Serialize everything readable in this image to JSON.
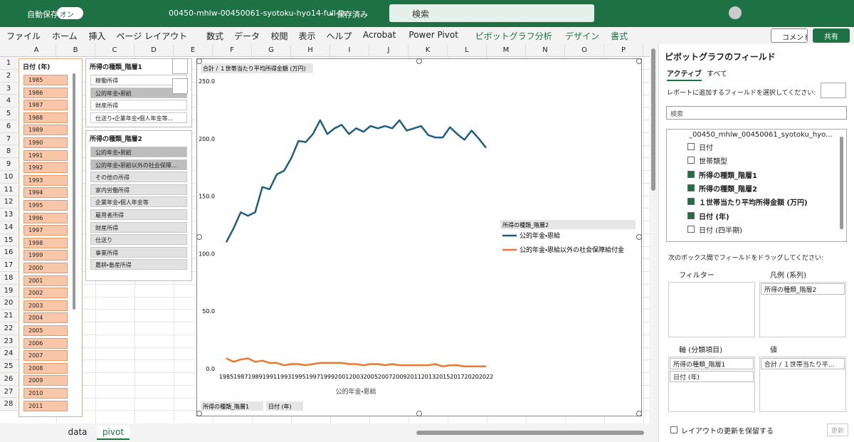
{
  "titlebar": {
    "autosave": "自動保存",
    "toggle": "オン",
    "filename": "00450-mhlw-00450061-syotoku-hyo14-full-lis···",
    "saved": "• 保存済み",
    "search": "検索"
  },
  "ribbon": {
    "tabs": [
      "ファイル",
      "ホーム",
      "挿入",
      "ページ レイアウト",
      "数式",
      "データ",
      "校閲",
      "表示",
      "ヘルプ",
      "Acrobat",
      "Power Pivot",
      "ピボットグラフ分析",
      "デザイン",
      "書式"
    ],
    "comment": "コメント",
    "share": "共有"
  },
  "sheet": {
    "columns": [
      "A",
      "B",
      "C",
      "D",
      "E",
      "F",
      "G",
      "H",
      "I",
      "J",
      "K",
      "L",
      "M",
      "N",
      "O",
      "P"
    ],
    "rows": [
      "1",
      "2",
      "3",
      "4",
      "5",
      "6",
      "7",
      "8",
      "9",
      "10",
      "11",
      "12",
      "13",
      "14",
      "15",
      "16",
      "17",
      "18",
      "19",
      "20",
      "21",
      "22",
      "23",
      "24",
      "25",
      "26",
      "27",
      "28"
    ]
  },
  "slicers": [
    {
      "title": "日付 (年)",
      "items": [
        "1985",
        "1986",
        "1987",
        "1988",
        "1989",
        "1990",
        "1991",
        "1992",
        "1993",
        "1994",
        "1995",
        "1996",
        "1997",
        "1998",
        "1999",
        "2000",
        "2001",
        "2002",
        "2003",
        "2004",
        "2005",
        "2006",
        "2007",
        "2008",
        "2009",
        "2010",
        "2011"
      ],
      "selected": [
        true,
        true,
        true,
        true,
        true,
        true,
        true,
        true,
        true,
        true,
        true,
        true,
        true,
        true,
        true,
        true,
        true,
        true,
        true,
        true,
        true,
        true,
        true,
        true,
        true,
        true,
        true
      ]
    },
    {
      "title": "所得の種類_階層1",
      "items": [
        "稼働所得",
        "公的年金・恩給",
        "財産所得",
        "仕送り・企業年金・個人年金等..."
      ],
      "selected": [
        false,
        true,
        false,
        false
      ]
    },
    {
      "title": "所得の種類_階層2",
      "items": [
        "公的年金・恩給",
        "公的年金・恩給以外の社会保障...",
        "その他の所得",
        "家内労働所得",
        "企業年金・個人年金等",
        "雇用者所得",
        "財産所得",
        "仕送り",
        "事業所得",
        "農耕・畜産所得"
      ],
      "selected": [
        true,
        true,
        false,
        false,
        false,
        false,
        false,
        false,
        false,
        false
      ]
    }
  ],
  "chart_data": {
    "type": "line",
    "value_field": "合計 / １世帯当たり平均所得金額 (万円)",
    "x_label": "公的年金・恩給",
    "legend_title": "所得の種類_階層2",
    "axis_buttons": [
      "所得の種類_階層1",
      "日付 (年)"
    ],
    "categories": [
      "1985",
      null,
      "1987",
      null,
      "1989",
      null,
      "1991",
      null,
      "1993",
      null,
      "1995",
      null,
      "1997",
      null,
      "1999",
      null,
      "2001",
      null,
      "2003",
      null,
      "2005",
      null,
      "2007",
      null,
      "2009",
      null,
      "2011",
      null,
      "2013",
      null,
      "2015",
      null,
      "2017",
      null,
      "2020",
      null,
      "2022"
    ],
    "ylim": [
      0,
      250
    ],
    "yticks": [
      {
        "value": 0,
        "label": "0.0"
      },
      {
        "value": 50,
        "label": "50.0"
      },
      {
        "value": 100,
        "label": "100.0"
      },
      {
        "value": 150,
        "label": "150.0"
      },
      {
        "value": 200,
        "label": "200.0"
      },
      {
        "value": 250,
        "label": "250.0"
      }
    ],
    "grid": false,
    "series": [
      {
        "name": "公的年金・恩給",
        "color": "#1f5e7e",
        "values": [
          110,
          122,
          136,
          133,
          136,
          158,
          156,
          169,
          172,
          183,
          198,
          197,
          204,
          216,
          204,
          209,
          212,
          204,
          209,
          206,
          211,
          209,
          211,
          209,
          216,
          207,
          209,
          211,
          203,
          201,
          201,
          210,
          204,
          199,
          207,
          200,
          192
        ]
      },
      {
        "name": "公的年金・恩給以外の社会保障給付金",
        "color": "#e8792f",
        "values": [
          9,
          6,
          8,
          9,
          6,
          7,
          5,
          5,
          3,
          4,
          4,
          3,
          4,
          5,
          5,
          5,
          5,
          4,
          4,
          3,
          4,
          4,
          3,
          4,
          3,
          3,
          3,
          3,
          3,
          4,
          2,
          3,
          3,
          2,
          2,
          2,
          2
        ]
      }
    ]
  },
  "sheet_tabs": [
    "data",
    "pivot"
  ],
  "active_tab": 1,
  "field_pane": {
    "title": "ピボットグラフのフィールド",
    "tabs": [
      "アクティブ",
      "すべて"
    ],
    "prompt": "レポートに追加するフィールドを選択してください:",
    "search": "検索",
    "table": "_00450_mhlw_00450061_syotoku_hyo...",
    "fields": [
      "日付",
      "世帯類型",
      "所得の種類_階層1",
      "所得の種類_階層2",
      "１世帯当たり平均所得金額 (万円)",
      "日付 (年)",
      "日付 (四半期)"
    ],
    "checked": [
      false,
      false,
      true,
      true,
      true,
      true,
      false
    ],
    "drag_prompt": "次のボックス間でフィールドをドラッグしてください:",
    "filter": "フィルター",
    "legend": "凡例 (系列)",
    "legend_items": [
      "所得の種類_階層2"
    ],
    "axis": "軸 (分類項目)",
    "axis_items": [
      "所得の種類_階層1",
      "日付 (年)"
    ],
    "values": "値",
    "values_items": [
      "合計 / １世帯当たり平..."
    ],
    "defer": "レイアウトの更新を保留する",
    "update": "更新"
  }
}
